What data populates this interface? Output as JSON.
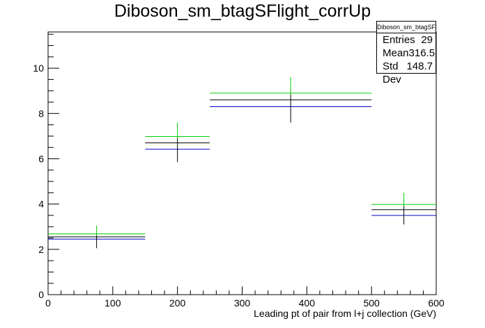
{
  "title": "Diboson_sm_btagSFlight_corrUp",
  "stats": {
    "name": "Diboson_sm_btagSFlight_corrUp",
    "entries_label": "Entries",
    "entries_value": "29",
    "mean_label": "Mean",
    "mean_value": "316.5",
    "stddev_label": "Std Dev",
    "stddev_value": "148.7"
  },
  "chart_data": {
    "type": "histogram",
    "title": "Diboson_sm_btagSFlight_corrUp",
    "xlabel": "Leading pt of pair from l+j collection (GeV)",
    "ylabel": "",
    "xlim": [
      0,
      600
    ],
    "ylim": [
      0,
      11.6
    ],
    "xticks": [
      0,
      100,
      200,
      300,
      400,
      500,
      600
    ],
    "yticks": [
      0,
      2,
      4,
      6,
      8,
      10
    ],
    "grid": false,
    "bins": [
      {
        "low": 0,
        "high": 150,
        "center": 75,
        "nominal": 2.55,
        "up": 2.68,
        "down": 2.45,
        "err_low": 2.05,
        "err_high": 3.05
      },
      {
        "low": 150,
        "high": 250,
        "center": 200,
        "nominal": 6.7,
        "up": 6.98,
        "down": 6.42,
        "err_low": 5.85,
        "err_high": 7.6
      },
      {
        "low": 250,
        "high": 500,
        "center": 375,
        "nominal": 8.6,
        "up": 8.9,
        "down": 8.3,
        "err_low": 7.6,
        "err_high": 9.6
      },
      {
        "low": 500,
        "high": 600,
        "center": 550,
        "nominal": 3.75,
        "up": 3.98,
        "down": 3.5,
        "err_low": 3.1,
        "err_high": 4.5
      }
    ],
    "series_colors": {
      "nominal": "#000000",
      "up": "#00cc00",
      "down": "#0000cc"
    }
  }
}
